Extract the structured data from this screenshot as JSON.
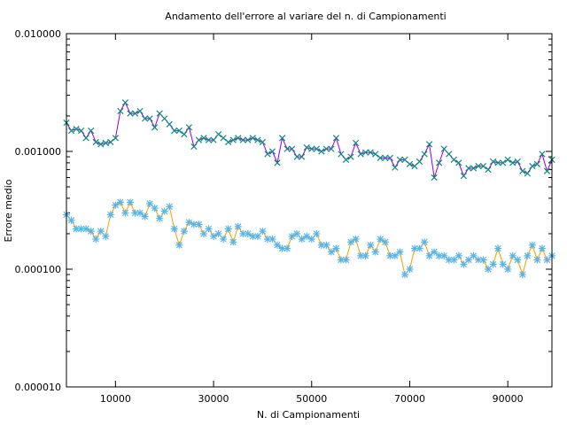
{
  "chart_data": {
    "type": "line",
    "title": "Andamento dell'errore al variare del n. di Campionamenti",
    "xlabel": "N. di Campionamenti",
    "ylabel": "Errore medio",
    "xlim": [
      0,
      99000
    ],
    "ylim": [
      1e-05,
      0.01
    ],
    "yscale": "log",
    "grid": false,
    "legend": "none",
    "xticks": [
      10000,
      30000,
      50000,
      70000,
      90000
    ],
    "xtick_labels": [
      "10000",
      "30000",
      "50000",
      "70000",
      "90000"
    ],
    "yticks": [
      0.01,
      0.001,
      0.0001,
      1e-05
    ],
    "ytick_labels": [
      "0.010000",
      "0.001000",
      "0.000100",
      "0.000010"
    ],
    "x": {
      "start": 0,
      "step": 1000,
      "count": 100
    },
    "series": [
      {
        "color": "#9400d3",
        "marker_color": "#0e8a7f",
        "marker": "x",
        "values": [
          0.00175,
          0.0015,
          0.00155,
          0.0015,
          0.0013,
          0.0015,
          0.0012,
          0.00115,
          0.00118,
          0.0012,
          0.0013,
          0.0022,
          0.0026,
          0.0021,
          0.0021,
          0.0022,
          0.0019,
          0.0019,
          0.0016,
          0.0021,
          0.0019,
          0.0017,
          0.0015,
          0.0015,
          0.0014,
          0.0016,
          0.0011,
          0.00125,
          0.0013,
          0.00125,
          0.00125,
          0.0014,
          0.0013,
          0.0012,
          0.00125,
          0.0013,
          0.00125,
          0.00125,
          0.0013,
          0.00125,
          0.0012,
          0.00095,
          0.001,
          0.0008,
          0.0013,
          0.00105,
          0.00105,
          0.0009,
          0.0009,
          0.00108,
          0.00105,
          0.00105,
          0.001,
          0.00105,
          0.00105,
          0.0013,
          0.00095,
          0.00085,
          0.0009,
          0.00118,
          0.00095,
          0.00098,
          0.00098,
          0.00095,
          0.00088,
          0.00088,
          0.00088,
          0.00073,
          0.00085,
          0.00085,
          0.00078,
          0.00075,
          0.00082,
          0.00095,
          0.00115,
          0.0006,
          0.0008,
          0.00105,
          0.00095,
          0.00085,
          0.0008,
          0.00062,
          0.00072,
          0.00072,
          0.00075,
          0.00075,
          0.0007,
          0.00082,
          0.0008,
          0.0008,
          0.00085,
          0.0008,
          0.00082,
          0.00068,
          0.00065,
          0.00075,
          0.00078,
          0.00095,
          0.00068,
          0.00085
        ]
      },
      {
        "color": "#f0a000",
        "marker_color": "#56b4e9",
        "marker": "*",
        "values": [
          0.00029,
          0.00026,
          0.00022,
          0.00022,
          0.00022,
          0.00021,
          0.00018,
          0.00021,
          0.00019,
          0.00029,
          0.00035,
          0.00037,
          0.0003,
          0.00037,
          0.0003,
          0.0003,
          0.00028,
          0.00036,
          0.00033,
          0.00027,
          0.00031,
          0.00034,
          0.00022,
          0.00016,
          0.00021,
          0.00025,
          0.00024,
          0.00024,
          0.0002,
          0.00022,
          0.00019,
          0.0002,
          0.00018,
          0.00022,
          0.00017,
          0.00023,
          0.0002,
          0.0002,
          0.00019,
          0.00019,
          0.00021,
          0.00018,
          0.00018,
          0.00016,
          0.00015,
          0.00015,
          0.00019,
          0.0002,
          0.00018,
          0.00019,
          0.00018,
          0.0002,
          0.00016,
          0.00016,
          0.00014,
          0.00015,
          0.00012,
          0.00012,
          0.00017,
          0.00018,
          0.00013,
          0.00013,
          0.00016,
          0.00014,
          0.00018,
          0.00017,
          0.00013,
          0.00013,
          0.00014,
          9e-05,
          0.0001,
          0.00015,
          0.00015,
          0.00017,
          0.00013,
          0.00014,
          0.00013,
          0.00013,
          0.00012,
          0.00012,
          0.00013,
          0.00011,
          0.00012,
          0.00013,
          0.00012,
          0.00012,
          0.0001,
          0.00011,
          0.00015,
          0.00011,
          0.0001,
          0.00013,
          0.00012,
          9e-05,
          0.00013,
          0.00016,
          0.00012,
          0.00015,
          0.00012,
          0.00013
        ]
      }
    ]
  }
}
